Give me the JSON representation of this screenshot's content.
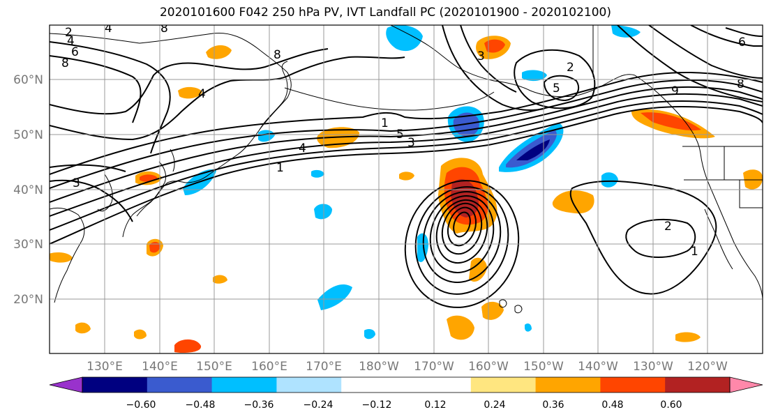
{
  "title": "2020101600 F042 250 hPa PV, IVT Landfall PC (2020101900 - 2020102100)",
  "lon_labels": [
    "130°E",
    "140°E",
    "150°E",
    "160°E",
    "170°E",
    "180°W",
    "170°W",
    "160°W",
    "150°W",
    "140°W",
    "130°W",
    "120°W"
  ],
  "lat_labels": [
    "60°N",
    "50°N",
    "40°N",
    "30°N",
    "20°N"
  ],
  "colorbar": {
    "colors": [
      "#9932cc",
      "#000080",
      "#3a5bcf",
      "#00bfff",
      "#afe3ff",
      "#ffffff",
      "#ffffff",
      "#ffe680",
      "#ffa500",
      "#ff4500",
      "#b22222",
      "#ff88aa"
    ],
    "under_color": "#9932cc",
    "over_color": "#ff88aa",
    "ticks": [
      "−0.60",
      "−0.48",
      "−0.36",
      "−0.24",
      "−0.12",
      "0.12",
      "0.24",
      "0.36",
      "0.48",
      "0.60"
    ]
  },
  "contour_labels": [
    "2",
    "4",
    "6",
    "8",
    "8",
    "4",
    "4",
    "1",
    "5",
    "3",
    "4",
    "1",
    "3",
    "2",
    "5",
    "9",
    "8",
    "8",
    "2",
    "1",
    "6",
    "3"
  ]
}
